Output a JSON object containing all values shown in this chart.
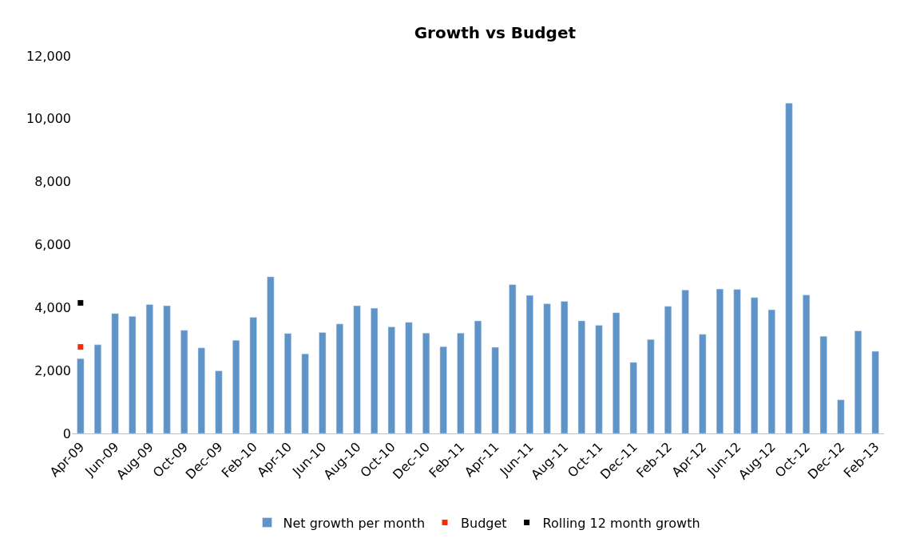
{
  "chart_data": {
    "type": "bar",
    "title": "Growth vs Budget",
    "categories": [
      "Apr-09",
      null,
      "Jun-09",
      null,
      "Aug-09",
      null,
      "Oct-09",
      null,
      "Dec-09",
      null,
      "Feb-10",
      null,
      "Apr-10",
      null,
      "Jun-10",
      null,
      "Aug-10",
      null,
      "Oct-10",
      null,
      "Dec-10",
      null,
      "Feb-11",
      null,
      "Apr-11",
      null,
      "Jun-11",
      null,
      "Aug-11",
      null,
      "Oct-11",
      null,
      "Dec-11",
      null,
      "Feb-12",
      null,
      "Apr-12",
      null,
      "Jun-12",
      null,
      "Aug-12",
      null,
      "Oct-12",
      null,
      "Dec-12",
      null,
      "Feb-13"
    ],
    "series": [
      {
        "name": "Net growth per month",
        "color": "#5f94c8",
        "values": [
          2380,
          2820,
          3810,
          3720,
          4100,
          4060,
          3280,
          2720,
          1990,
          2960,
          3690,
          4980,
          3180,
          2530,
          3210,
          3480,
          4060,
          3980,
          3390,
          3530,
          3190,
          2760,
          3190,
          3580,
          2740,
          4730,
          4390,
          4120,
          4200,
          3580,
          3440,
          3840,
          2260,
          2990,
          4040,
          4560,
          3150,
          4590,
          4580,
          4320,
          3930,
          10500,
          4400,
          3090,
          1070,
          3260,
          2610
        ]
      },
      {
        "name": "Budget",
        "color": "#ff2a00",
        "type": "scatter",
        "marker": "square",
        "values": [
          2750,
          null,
          null,
          null,
          null,
          null,
          null,
          null,
          null,
          null,
          null,
          null,
          null,
          null,
          null,
          null,
          null,
          null,
          null,
          null,
          null,
          null,
          null,
          null,
          null,
          null,
          null,
          null,
          null,
          null,
          null,
          null,
          null,
          null,
          null,
          null,
          null,
          null,
          null,
          null,
          null,
          null,
          null,
          null,
          null,
          null,
          null
        ]
      },
      {
        "name": "Rolling 12 month growth",
        "color": "#000000",
        "type": "scatter",
        "marker": "square",
        "values": [
          4150,
          null,
          null,
          null,
          null,
          null,
          null,
          null,
          null,
          null,
          null,
          null,
          null,
          null,
          null,
          null,
          null,
          null,
          null,
          null,
          null,
          null,
          null,
          null,
          null,
          null,
          null,
          null,
          null,
          null,
          null,
          null,
          null,
          null,
          null,
          null,
          null,
          null,
          null,
          null,
          null,
          null,
          null,
          null,
          null,
          null,
          null
        ]
      }
    ],
    "ylim": [
      0,
      12000
    ],
    "yticks": [
      {
        "value": 0,
        "label": "0"
      },
      {
        "value": 2000,
        "label": "2,000"
      },
      {
        "value": 4000,
        "label": "4,000"
      },
      {
        "value": 6000,
        "label": "6,000"
      },
      {
        "value": 8000,
        "label": "8,000"
      },
      {
        "value": 10000,
        "label": "10,000"
      },
      {
        "value": 12000,
        "label": "12,000"
      }
    ],
    "legend": "bottom"
  }
}
